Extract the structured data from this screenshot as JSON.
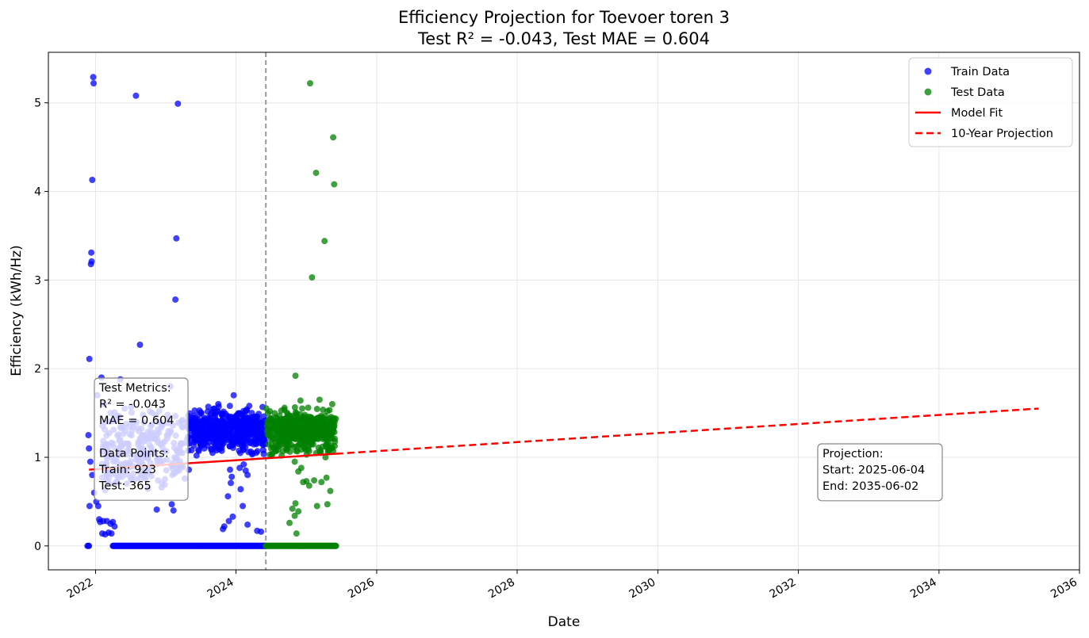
{
  "chart_data": {
    "type": "scatter",
    "title": "Efficiency Projection for Toevoer toren 3",
    "subtitle": "Test R² = -0.043, Test MAE = 0.604",
    "xlabel": "Date",
    "ylabel": "Efficiency (kWh/Hz)",
    "xlim": [
      "2021-05-01",
      "2036-01-01"
    ],
    "ylim": [
      -0.27,
      5.57
    ],
    "x_ticks": [
      "2022",
      "2024",
      "2026",
      "2028",
      "2030",
      "2032",
      "2034",
      "2036"
    ],
    "y_ticks": [
      "0",
      "1",
      "2",
      "3",
      "4",
      "5"
    ],
    "grid": true,
    "legend_position": "top-right",
    "split_date": "2024-06-04",
    "colors": {
      "train": "#0000ff",
      "test": "#008000",
      "model_fit": "#ff0000",
      "projection": "#ff0000",
      "split_line": "#999999"
    },
    "legend": [
      {
        "label": "Train Data",
        "kind": "dot",
        "color": "#0000ff"
      },
      {
        "label": "Test Data",
        "kind": "dot",
        "color": "#008000"
      },
      {
        "label": "Model Fit",
        "kind": "line",
        "color": "#ff0000"
      },
      {
        "label": "10-Year Projection",
        "kind": "dash",
        "color": "#ff0000"
      }
    ],
    "model_fit": {
      "x": [
        "2021-11-28",
        "2025-06-04"
      ],
      "y": [
        0.86,
        1.04
      ]
    },
    "projection": {
      "x": [
        "2025-06-04",
        "2035-06-02"
      ],
      "y": [
        1.04,
        1.55
      ]
    },
    "metrics_box": [
      "Test Metrics:",
      "R² = -0.043",
      "MAE = 0.604",
      "",
      "Data Points:",
      "Train: 923",
      "Test: 365"
    ],
    "projection_box": [
      "Projection:",
      "Start: 2025-06-04",
      "End: 2035-06-02"
    ],
    "series": [
      {
        "name": "Train Data",
        "points": [
          [
            "2021-11-30",
            2.11
          ],
          [
            "2021-12-20",
            5.29
          ],
          [
            "2021-12-22",
            5.22
          ],
          [
            "2021-12-15",
            4.13
          ],
          [
            "2021-12-10",
            3.31
          ],
          [
            "2021-12-12",
            3.21
          ],
          [
            "2021-12-08",
            3.18
          ],
          [
            "2022-07-30",
            5.08
          ],
          [
            "2023-03-05",
            4.99
          ],
          [
            "2023-02-25",
            3.47
          ],
          [
            "2023-02-20",
            2.78
          ],
          [
            "2022-08-20",
            2.27
          ],
          [
            "2022-02-01",
            1.9
          ],
          [
            "2022-05-10",
            1.88
          ],
          [
            "2022-01-10",
            1.7
          ],
          [
            "2022-02-15",
            1.6
          ],
          [
            "2022-03-20",
            1.5
          ],
          [
            "2022-04-15",
            1.42
          ],
          [
            "2022-06-01",
            1.55
          ],
          [
            "2022-07-10",
            1.3
          ],
          [
            "2022-09-01",
            1.22
          ],
          [
            "2022-10-15",
            1.35
          ],
          [
            "2022-12-01",
            1.4
          ],
          [
            "2023-01-10",
            1.48
          ],
          [
            "2023-01-25",
            1.8
          ],
          [
            "2021-11-25",
            1.25
          ],
          [
            "2021-11-28",
            1.1
          ],
          [
            "2021-12-05",
            0.95
          ],
          [
            "2021-12-15",
            0.8
          ],
          [
            "2021-12-25",
            0.6
          ],
          [
            "2022-01-05",
            0.5
          ],
          [
            "2022-01-15",
            0.45
          ],
          [
            "2021-12-01",
            0.45
          ],
          [
            "2022-01-20",
            0.3
          ],
          [
            "2022-01-25",
            0.27
          ],
          [
            "2022-02-10",
            0.28
          ],
          [
            "2022-03-01",
            0.28
          ],
          [
            "2022-03-20",
            0.25
          ],
          [
            "2022-04-01",
            0.27
          ],
          [
            "2022-04-10",
            0.22
          ],
          [
            "2022-02-05",
            0.14
          ],
          [
            "2022-02-20",
            0.13
          ],
          [
            "2022-03-10",
            0.15
          ],
          [
            "2022-03-25",
            0.14
          ],
          [
            "2022-11-15",
            0.41
          ],
          [
            "2023-02-01",
            0.47
          ],
          [
            "2023-02-10",
            0.4
          ],
          [
            "2023-04-10",
            0.76
          ],
          [
            "2023-05-01",
            0.86
          ],
          [
            "2022-02-20",
            0.63
          ],
          [
            "2022-03-15",
            0.7
          ],
          [
            "2022-05-20",
            0.78
          ],
          [
            "2022-06-15",
            0.92
          ],
          [
            "2022-08-10",
            0.96
          ],
          [
            "2022-10-01",
            0.84
          ],
          [
            "2023-03-10",
            0.92
          ],
          [
            "2023-06-01",
            1.2
          ],
          [
            "2023-06-20",
            1.28
          ],
          [
            "2023-07-10",
            1.36
          ],
          [
            "2023-08-01",
            1.25
          ],
          [
            "2023-08-20",
            1.42
          ],
          [
            "2023-09-10",
            1.55
          ],
          [
            "2023-10-01",
            1.6
          ],
          [
            "2023-10-20",
            1.48
          ],
          [
            "2023-11-10",
            1.38
          ],
          [
            "2023-11-30",
            1.58
          ],
          [
            "2023-12-20",
            1.7
          ],
          [
            "2024-01-10",
            1.46
          ],
          [
            "2024-02-01",
            1.32
          ],
          [
            "2024-02-20",
            1.52
          ],
          [
            "2024-03-10",
            1.58
          ],
          [
            "2024-04-01",
            1.41
          ],
          [
            "2024-04-20",
            1.36
          ],
          [
            "2024-05-10",
            1.22
          ],
          [
            "2024-05-25",
            1.46
          ],
          [
            "2023-05-15",
            1.08
          ],
          [
            "2023-06-10",
            1.02
          ],
          [
            "2023-07-20",
            1.1
          ],
          [
            "2023-09-01",
            1.05
          ],
          [
            "2023-10-10",
            1.12
          ],
          [
            "2023-12-01",
            0.86
          ],
          [
            "2023-12-10",
            0.78
          ],
          [
            "2023-12-05",
            0.71
          ],
          [
            "2024-01-20",
            0.88
          ],
          [
            "2024-01-25",
            0.64
          ],
          [
            "2024-02-10",
            0.92
          ],
          [
            "2024-02-20",
            0.85
          ],
          [
            "2024-03-01",
            0.8
          ],
          [
            "2023-11-20",
            0.56
          ],
          [
            "2024-02-05",
            0.45
          ],
          [
            "2023-11-25",
            0.28
          ],
          [
            "2023-12-15",
            0.33
          ],
          [
            "2023-10-25",
            0.19
          ],
          [
            "2023-11-01",
            0.22
          ],
          [
            "2024-03-01",
            0.24
          ],
          [
            "2024-04-20",
            0.17
          ],
          [
            "2024-05-10",
            0.16
          ],
          [
            "2024-04-15",
            1.05
          ],
          [
            "2023-07-05",
            1.5
          ],
          [
            "2023-08-10",
            1.57
          ]
        ],
        "zero_band": [
          "2022-04-01",
          "2024-06-04"
        ],
        "zero_band_extra": [
          "2021-11-20",
          "2021-11-25",
          "2021-11-28"
        ]
      },
      {
        "name": "Test Data",
        "points": [
          [
            "2025-01-20",
            5.22
          ],
          [
            "2025-05-20",
            4.61
          ],
          [
            "2025-02-20",
            4.21
          ],
          [
            "2025-05-25",
            4.08
          ],
          [
            "2025-04-05",
            3.44
          ],
          [
            "2025-01-30",
            3.03
          ],
          [
            "2024-11-05",
            1.92
          ],
          [
            "2024-12-01",
            1.64
          ],
          [
            "2024-12-10",
            1.55
          ],
          [
            "2025-01-10",
            1.56
          ],
          [
            "2025-03-10",
            1.65
          ],
          [
            "2025-04-20",
            1.52
          ],
          [
            "2025-05-15",
            1.6
          ],
          [
            "2024-11-20",
            1.45
          ],
          [
            "2024-06-15",
            1.38
          ],
          [
            "2024-07-10",
            1.41
          ],
          [
            "2024-08-05",
            1.33
          ],
          [
            "2024-09-01",
            1.29
          ],
          [
            "2024-10-01",
            1.42
          ],
          [
            "2024-10-20",
            1.26
          ],
          [
            "2024-12-20",
            1.11
          ],
          [
            "2025-01-25",
            1.22
          ],
          [
            "2025-02-25",
            1.3
          ],
          [
            "2025-03-25",
            1.25
          ],
          [
            "2025-04-25",
            1.1
          ],
          [
            "2025-05-28",
            1.21
          ],
          [
            "2024-08-25",
            1.02
          ],
          [
            "2024-09-20",
            1.08
          ],
          [
            "2024-11-01",
            0.95
          ],
          [
            "2024-11-20",
            0.84
          ],
          [
            "2024-12-15",
            0.72
          ],
          [
            "2025-01-01",
            0.73
          ],
          [
            "2025-01-15",
            0.68
          ],
          [
            "2025-02-10",
            0.74
          ],
          [
            "2025-03-20",
            0.72
          ],
          [
            "2025-04-15",
            0.77
          ],
          [
            "2025-04-20",
            0.47
          ],
          [
            "2025-02-25",
            0.45
          ],
          [
            "2025-05-05",
            0.62
          ],
          [
            "2025-04-10",
            1.0
          ],
          [
            "2024-12-05",
            0.88
          ],
          [
            "2024-10-20",
            0.42
          ],
          [
            "2024-11-01",
            0.34
          ],
          [
            "2024-10-05",
            0.26
          ],
          [
            "2024-11-05",
            0.48
          ],
          [
            "2024-11-10",
            0.14
          ],
          [
            "2024-11-20",
            0.39
          ]
        ],
        "zero_band": [
          "2024-06-04",
          "2025-06-04"
        ]
      }
    ]
  }
}
